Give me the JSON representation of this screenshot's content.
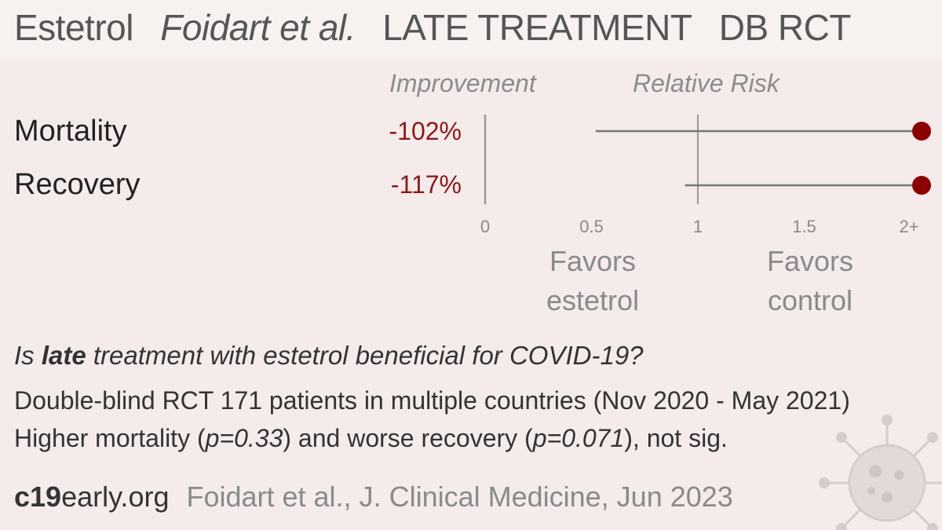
{
  "header": {
    "drug": "Estetrol",
    "authors": "Foidart et al.",
    "stage": "LATE TREATMENT",
    "design": "DB RCT"
  },
  "columns": {
    "improvement": "Improvement",
    "relative_risk": "Relative Risk"
  },
  "favors": {
    "left_line1": "Favors",
    "left_line2": "estetrol",
    "right_line1": "Favors",
    "right_line2": "control"
  },
  "chart_data": {
    "type": "forest",
    "axis_ticks": [
      "0",
      "0.5",
      "1",
      "1.5",
      "2+"
    ],
    "xlim": [
      0,
      2
    ],
    "reference_line": 1,
    "rows": [
      {
        "label": "Mortality",
        "improvement": "-102%",
        "rr": 2.02,
        "ci_low": 0.52,
        "ci_high": 2.02
      },
      {
        "label": "Recovery",
        "improvement": "-117%",
        "rr": 2.17,
        "ci_low": 0.94,
        "ci_high": 2.17
      }
    ],
    "colors": {
      "point": "#8b0000",
      "line": "#777777",
      "axis": "#999999"
    }
  },
  "question": {
    "pre": "Is ",
    "bold": "late",
    "post": " treatment with estetrol beneficial for COVID-19?"
  },
  "summary": {
    "line1": "Double-blind RCT 171 patients in multiple countries (Nov 2020 - May 2021)",
    "line2_a": "Higher mortality (",
    "line2_p1": "p=0.33",
    "line2_b": ") and worse recovery (",
    "line2_p2": "p=0.071",
    "line2_c": "), not sig."
  },
  "footer": {
    "site_bold": "c19",
    "site_rest": "early.org",
    "citation": "Foidart et al., J. Clinical Medicine, Jun 2023"
  }
}
